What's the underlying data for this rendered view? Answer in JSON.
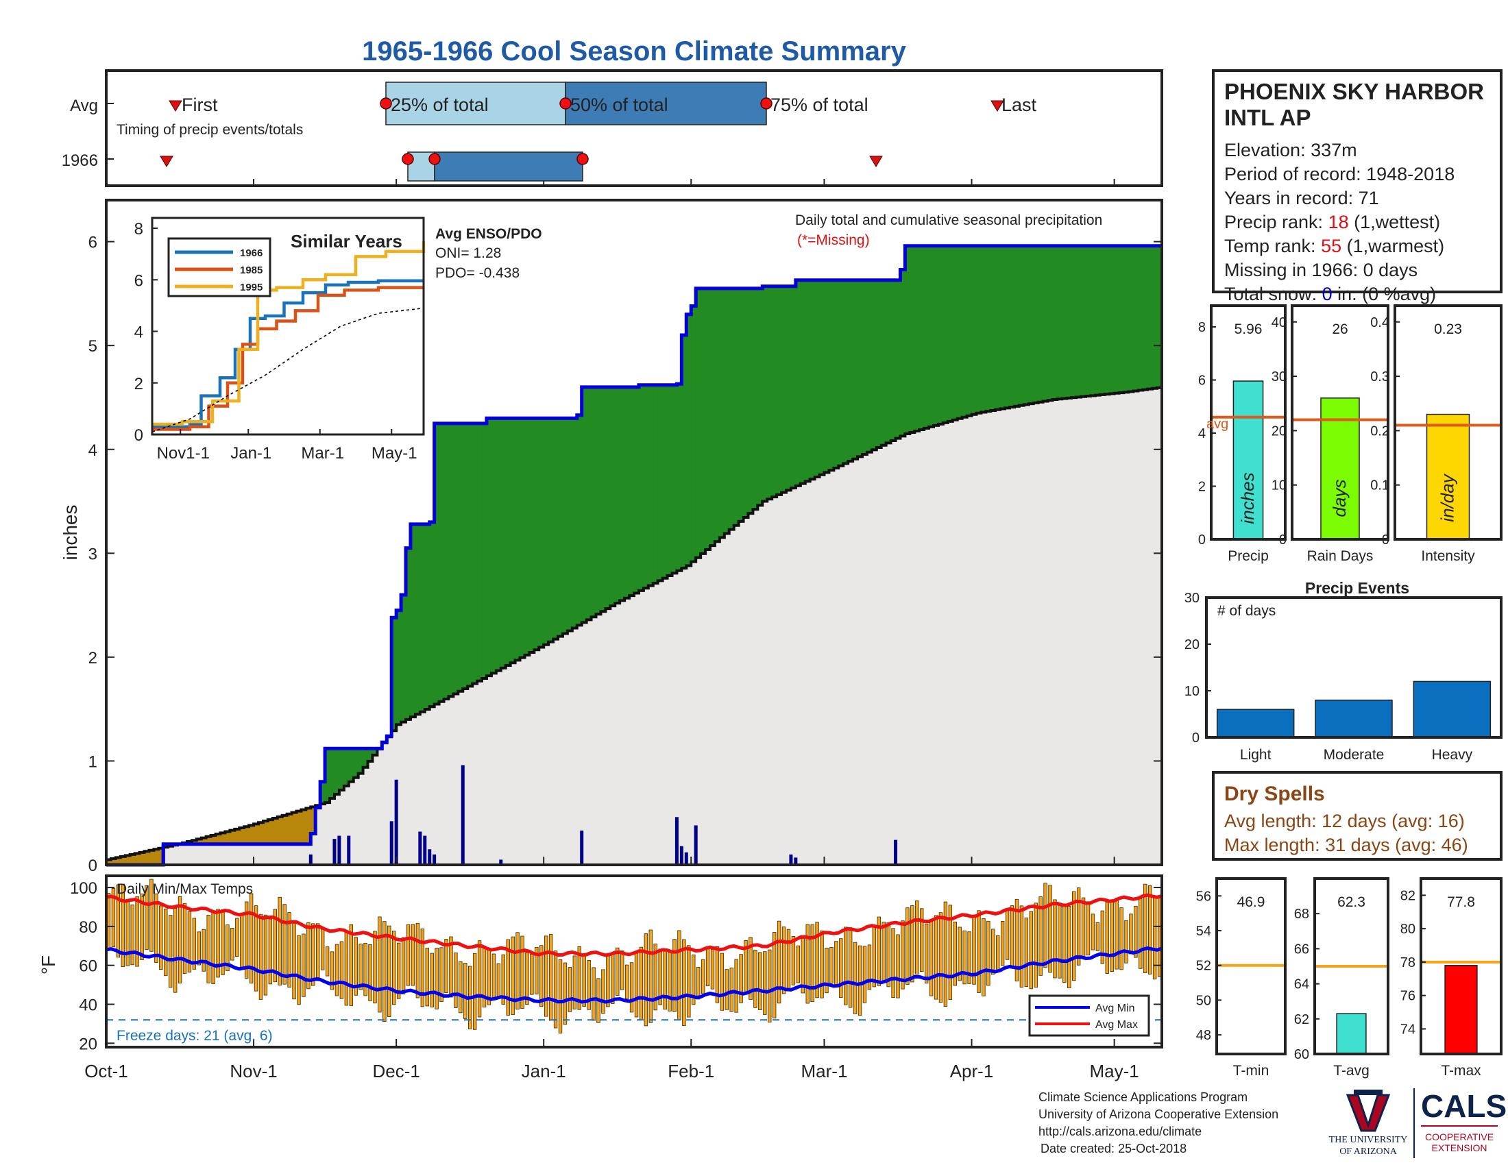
{
  "title": "1965-1966 Cool Season Climate Summary",
  "timing": {
    "row_avg": "Avg",
    "row_year": "1966",
    "caption": "Timing of precip events/totals",
    "first": "First",
    "p25": "25% of total",
    "p50": "50% of total",
    "p75": "75% of total",
    "last": "Last"
  },
  "station": {
    "name_line1": "PHOENIX SKY HARBOR",
    "name_line2": "INTL AP",
    "elevation": "Elevation: 337m",
    "period": "Period of record: 1948-2018",
    "years": "Years in record: 71",
    "precip_rank_label": "Precip rank: ",
    "precip_rank_value": "18",
    "precip_rank_suffix": " (1,wettest)",
    "temp_rank_label": "Temp rank: ",
    "temp_rank_value": "55",
    "temp_rank_suffix": " (1,warmest)",
    "missing": "Missing in 1966: 0 days",
    "snow_label": "Total snow: ",
    "snow_value": "0",
    "snow_suffix": " in. (0 %avg)"
  },
  "main_chart": {
    "ylabel": "inches",
    "annotation": "Daily total and cumulative seasonal precipitation",
    "missing_note": "(*=Missing)",
    "x_ticks": [
      "Oct-1",
      "Nov-1",
      "Dec-1",
      "Jan-1",
      "Feb-1",
      "Mar-1",
      "Apr-1",
      "May-1"
    ],
    "y_ticks": [
      "0",
      "1",
      "2",
      "3",
      "4",
      "5",
      "6"
    ]
  },
  "enso": {
    "title": "Avg ENSO/PDO",
    "oni": "ONI= 1.28",
    "pdo": "PDO= -0.438"
  },
  "similar": {
    "title": "Similar Years",
    "legend": [
      "1966",
      "1985",
      "1995"
    ],
    "x_ticks": [
      "Nov1-1",
      "Jan-1",
      "Mar-1",
      "May-1"
    ],
    "y_ticks": [
      "0",
      "2",
      "4",
      "6",
      "8"
    ]
  },
  "temps": {
    "title": "Daily Min/Max Temps",
    "ylabel": "°F",
    "y_ticks": [
      "20",
      "40",
      "60",
      "80",
      "100"
    ],
    "freeze": "Freeze days: 21 (avg. 6)",
    "legend_min": "Avg Min",
    "legend_max": "Avg Max"
  },
  "small_bars": {
    "precip": {
      "label": "Precip",
      "unit": "inches",
      "value_text": "5.96",
      "avg_text": "avg",
      "y_ticks": [
        "0",
        "2",
        "4",
        "6",
        "8"
      ]
    },
    "rain": {
      "label": "Rain Days",
      "unit": "days",
      "value_text": "26",
      "y_ticks": [
        "0",
        "10",
        "20",
        "30",
        "40"
      ]
    },
    "intensity": {
      "label": "Intensity",
      "unit": "in/day",
      "value_text": "0.23",
      "y_ticks": [
        "0",
        "0.1",
        "0.2",
        "0.3",
        "0.4"
      ]
    }
  },
  "events": {
    "title": "Precip Events",
    "note": "# of days",
    "categories": [
      "Light",
      "Moderate",
      "Heavy"
    ],
    "y_ticks": [
      "0",
      "10",
      "20",
      "30"
    ]
  },
  "dry": {
    "title": "Dry Spells",
    "avg": "Avg length: 12 days (avg: 16)",
    "max": "Max length: 31 days (avg: 46)"
  },
  "temp_bars": {
    "tmin": {
      "label": "T-min",
      "value_text": "46.9",
      "y_ticks": [
        "48",
        "50",
        "52",
        "54",
        "56"
      ]
    },
    "tavg": {
      "label": "T-avg",
      "value_text": "62.3",
      "y_ticks": [
        "60",
        "62",
        "64",
        "66",
        "68"
      ]
    },
    "tmax": {
      "label": "T-max",
      "value_text": "77.8",
      "y_ticks": [
        "74",
        "76",
        "78",
        "80",
        "82"
      ]
    }
  },
  "footer": {
    "line1": "Climate Science Applications Program",
    "line2": "University of Arizona Cooperative Extension",
    "line3": "http://cals.arizona.edu/climate",
    "line4": "Date created: 25-Oct-2018",
    "ua_line1": "THE UNIVERSITY",
    "ua_line2": "OF ARIZONA",
    "cals": "CALS",
    "coop1": "COOPERATIVE",
    "coop2": "EXTENSION"
  },
  "colors": {
    "title": "#1f5aa6",
    "observed_fill": "#228b22",
    "deficit_fill": "#b8860b",
    "normal_fill": "#e9e8e7",
    "observed_line": "#0000dd",
    "temp_bars": "#f5a31a",
    "avg_min": "#0000ee",
    "avg_max": "#ee1111",
    "dry_text": "#8b4513"
  },
  "chart_data": [
    {
      "type": "area",
      "name": "cumulative precipitation",
      "x_unit": "days since Oct-1",
      "observed_steps": [
        [
          0,
          0
        ],
        [
          12,
          0.2
        ],
        [
          43,
          0.3
        ],
        [
          44,
          0.55
        ],
        [
          45,
          0.8
        ],
        [
          46,
          1.12
        ],
        [
          58,
          1.18
        ],
        [
          59,
          1.24
        ],
        [
          60,
          2.38
        ],
        [
          61,
          2.45
        ],
        [
          62,
          2.6
        ],
        [
          63,
          3.05
        ],
        [
          64,
          3.28
        ],
        [
          68,
          3.3
        ],
        [
          69,
          4.25
        ],
        [
          80,
          4.3
        ],
        [
          99,
          4.33
        ],
        [
          100,
          4.6
        ],
        [
          112,
          4.62
        ],
        [
          120,
          4.63
        ],
        [
          121,
          5.1
        ],
        [
          122,
          5.3
        ],
        [
          123,
          5.38
        ],
        [
          124,
          5.55
        ],
        [
          138,
          5.57
        ],
        [
          145,
          5.63
        ],
        [
          167,
          5.73
        ],
        [
          168,
          5.96
        ],
        [
          222,
          5.96
        ]
      ],
      "average_cumulative": [
        [
          0,
          0.05
        ],
        [
          15,
          0.2
        ],
        [
          30,
          0.38
        ],
        [
          46,
          0.6
        ],
        [
          53,
          0.88
        ],
        [
          61,
          1.35
        ],
        [
          76,
          1.72
        ],
        [
          92,
          2.12
        ],
        [
          107,
          2.52
        ],
        [
          122,
          2.88
        ],
        [
          138,
          3.5
        ],
        [
          153,
          3.82
        ],
        [
          168,
          4.15
        ],
        [
          183,
          4.35
        ],
        [
          199,
          4.48
        ],
        [
          214,
          4.55
        ],
        [
          222,
          4.6
        ]
      ],
      "ylim": [
        0,
        6.4
      ],
      "xlim": [
        0,
        222
      ]
    },
    {
      "type": "bar",
      "name": "daily precipitation",
      "x_unit": "days since Oct-1",
      "values": [
        [
          12,
          0.2
        ],
        [
          43,
          0.1
        ],
        [
          48,
          0.25
        ],
        [
          49,
          0.28
        ],
        [
          51,
          0.28
        ],
        [
          60,
          0.42
        ],
        [
          61,
          0.82
        ],
        [
          66,
          0.32
        ],
        [
          67,
          0.28
        ],
        [
          68,
          0.15
        ],
        [
          69,
          0.1
        ],
        [
          75,
          0.96
        ],
        [
          83,
          0.05
        ],
        [
          100,
          0.33
        ],
        [
          120,
          0.46
        ],
        [
          121,
          0.18
        ],
        [
          122,
          0.12
        ],
        [
          124,
          0.38
        ],
        [
          144,
          0.1
        ],
        [
          145,
          0.07
        ],
        [
          166,
          0.24
        ]
      ]
    },
    {
      "type": "line",
      "name": "similar years",
      "series": [
        {
          "name": "1966",
          "color": "#1a73b8",
          "x": [
            0,
            1,
            1.3,
            1.8,
            2.2,
            2.6,
            3,
            3.5,
            4,
            4.6,
            5.2,
            6,
            7.2
          ],
          "y": [
            0.3,
            0.4,
            1.5,
            2.2,
            3.3,
            4.5,
            4.6,
            5.1,
            5.5,
            5.8,
            5.9,
            5.96,
            5.96
          ]
        },
        {
          "name": "1985",
          "color": "#d95319",
          "x": [
            0,
            1,
            1.5,
            2,
            2.4,
            2.8,
            3.3,
            3.8,
            4.4,
            5.1,
            6,
            7.2
          ],
          "y": [
            0.2,
            0.3,
            1.1,
            2.0,
            3.5,
            4.1,
            4.4,
            4.8,
            5.4,
            5.6,
            5.7,
            5.7
          ]
        },
        {
          "name": "1995",
          "color": "#edb120",
          "x": [
            0,
            0.8,
            1.6,
            2.3,
            2.8,
            3.3,
            4,
            4.6,
            5.4,
            6.2,
            7.2
          ],
          "y": [
            0.4,
            0.5,
            1.3,
            3.3,
            5.6,
            5.7,
            6.0,
            6.2,
            6.9,
            7.1,
            7.5
          ]
        },
        {
          "name": "avg",
          "color": "#000000",
          "x": [
            0,
            1,
            2,
            3,
            4,
            5,
            6,
            7.2
          ],
          "y": [
            0.1,
            0.6,
            1.5,
            2.3,
            3.3,
            4.2,
            4.7,
            4.9
          ]
        }
      ],
      "ylim": [
        0,
        8
      ]
    },
    {
      "type": "line",
      "name": "daily temperatures",
      "avg_max": [
        [
          0,
          95
        ],
        [
          15,
          90
        ],
        [
          31,
          86
        ],
        [
          45,
          79
        ],
        [
          61,
          74
        ],
        [
          76,
          70
        ],
        [
          92,
          66
        ],
        [
          107,
          66
        ],
        [
          123,
          68
        ],
        [
          138,
          70
        ],
        [
          153,
          77
        ],
        [
          168,
          82
        ],
        [
          183,
          86
        ],
        [
          199,
          91
        ],
        [
          222,
          96
        ]
      ],
      "avg_min": [
        [
          0,
          68
        ],
        [
          15,
          63
        ],
        [
          31,
          58
        ],
        [
          45,
          52
        ],
        [
          61,
          47
        ],
        [
          76,
          44
        ],
        [
          92,
          42
        ],
        [
          107,
          42
        ],
        [
          123,
          44
        ],
        [
          138,
          47
        ],
        [
          153,
          50
        ],
        [
          168,
          53
        ],
        [
          183,
          56
        ],
        [
          199,
          62
        ],
        [
          222,
          69
        ]
      ],
      "freeze_line": 32,
      "ylim": [
        18,
        106
      ]
    },
    {
      "type": "bar",
      "name": "Precip",
      "value": 5.96,
      "average": 4.6,
      "ylim": [
        0,
        8.8
      ]
    },
    {
      "type": "bar",
      "name": "Rain Days",
      "value": 26,
      "average": 22,
      "ylim": [
        0,
        43
      ]
    },
    {
      "type": "bar",
      "name": "Intensity",
      "value": 0.23,
      "average": 0.21,
      "ylim": [
        0,
        0.43
      ]
    },
    {
      "type": "bar",
      "name": "Precip Events",
      "categories": [
        "Light",
        "Moderate",
        "Heavy"
      ],
      "values": [
        6,
        8,
        12
      ],
      "ylim": [
        0,
        30
      ]
    },
    {
      "type": "bar",
      "name": "T-min",
      "value": 46.9,
      "average": 52,
      "ylim": [
        46.9,
        57
      ]
    },
    {
      "type": "bar",
      "name": "T-avg",
      "value": 62.3,
      "average": 65,
      "ylim": [
        60,
        70
      ]
    },
    {
      "type": "bar",
      "name": "T-max",
      "value": 77.8,
      "average": 78,
      "ylim": [
        72.5,
        83
      ]
    }
  ]
}
